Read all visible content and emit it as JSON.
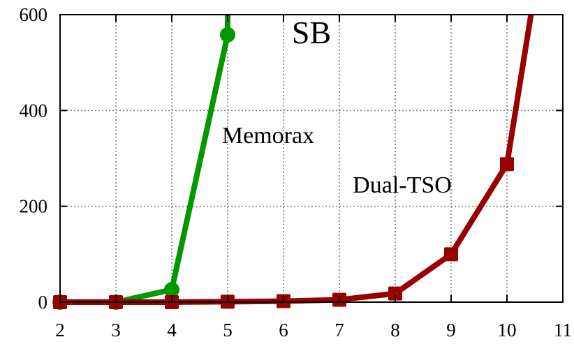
{
  "chart_data": {
    "type": "line",
    "title": "SB",
    "xlabel": "",
    "ylabel": "",
    "xlim": [
      2,
      11
    ],
    "ylim": [
      0,
      600
    ],
    "xticks": [
      2,
      3,
      4,
      5,
      6,
      7,
      8,
      9,
      10,
      11
    ],
    "yticks": [
      0,
      200,
      400,
      600
    ],
    "grid": true,
    "series": [
      {
        "name": "Memorax",
        "color": "#009900",
        "marker": "circle",
        "points": [
          [
            2,
            0
          ],
          [
            3,
            0
          ],
          [
            4,
            26
          ],
          [
            5,
            558
          ]
        ],
        "extension": [
          [
            5,
            558
          ],
          [
            5.0,
            600
          ]
        ]
      },
      {
        "name": "Dual-TSO",
        "color": "#990000",
        "marker": "square",
        "points": [
          [
            2,
            0
          ],
          [
            3,
            0
          ],
          [
            4,
            0
          ],
          [
            5,
            1
          ],
          [
            6,
            2
          ],
          [
            7,
            5
          ],
          [
            8,
            18
          ],
          [
            9,
            100
          ],
          [
            10,
            288
          ]
        ],
        "extension": [
          [
            10,
            288
          ],
          [
            10.43,
            600
          ]
        ]
      }
    ]
  }
}
